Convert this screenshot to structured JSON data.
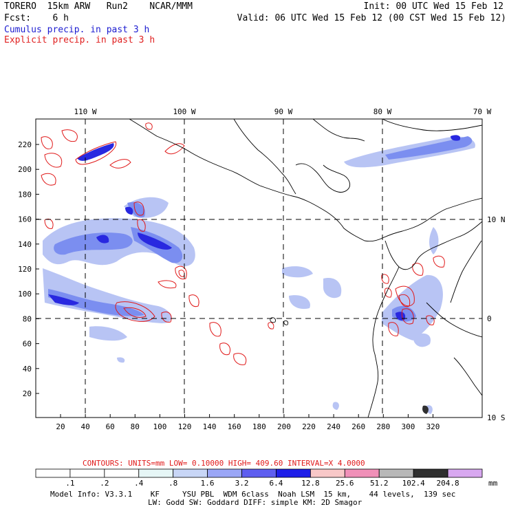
{
  "header": {
    "left_line1": "TORERO  15km ARW   Run2    NCAR/MMM",
    "left_line2": "Fcst:    6 h",
    "right_line1": "Init: 00 UTC Wed 15 Feb 12",
    "right_line2": "Valid: 06 UTC Wed 15 Feb 12 (00 CST Wed 15 Feb 12)",
    "legend_cumulus": "Cumulus precip. in past 3 h",
    "legend_explicit": "Explicit precip. in past 3 h"
  },
  "map": {
    "lon_labels": [
      "110 W",
      "100 W",
      "90 W",
      "80 W",
      "70 W"
    ],
    "lat_labels": [
      "10 N",
      "0",
      "10 S"
    ],
    "x_ticks": [
      "20",
      "40",
      "60",
      "80",
      "100",
      "120",
      "140",
      "160",
      "180",
      "200",
      "220",
      "240",
      "260",
      "280",
      "300",
      "320"
    ],
    "y_ticks": [
      "20",
      "40",
      "60",
      "80",
      "100",
      "120",
      "140",
      "160",
      "180",
      "200",
      "220"
    ],
    "colors": {
      "cumulus_light": "#b8c4f4",
      "cumulus_mid": "#7b8ef0",
      "cumulus_dark": "#2828e0",
      "explicit_contour": "#e01818",
      "coastline": "#000000"
    }
  },
  "contours": {
    "label": "CONTOURS:  UNITS=mm  LOW= 0.10000      HIGH=  409.60      INTERVAL=X  4.0000"
  },
  "colorbar": {
    "unit": "mm",
    "levels": [
      ".1",
      ".2",
      ".4",
      ".8",
      "1.6",
      "3.2",
      "6.4",
      "12.8",
      "25.6",
      "51.2",
      "102.4",
      "204.8"
    ],
    "colors": [
      "#ffffff",
      "#ffffff",
      "#ffffff",
      "#e6f6f6",
      "#c8d6f6",
      "#9aa6f6",
      "#5e5ef0",
      "#1e1ee8",
      "#f8c8c8",
      "#f090b8",
      "#b8b8b8",
      "#303030",
      "#d8a8f0"
    ]
  },
  "footer": {
    "line1": "Model Info: V3.3.1    KF     YSU PBL  WDM 6class  Noah LSM  15 km,    44 levels,  139 sec",
    "line2": "LW: Godd SW: Goddard DIFF: simple KM: 2D Smagor"
  }
}
